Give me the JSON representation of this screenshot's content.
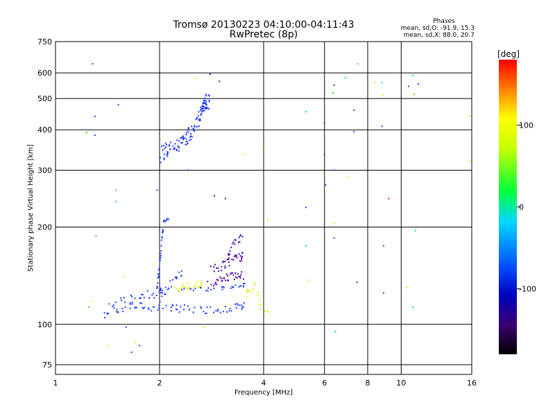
{
  "chart_data": {
    "type": "scatter",
    "title": "Tromsø 20130223 04:10:00-04:11:43",
    "subtitle": "RwPretec (8p)",
    "xlabel": "Frequency [MHz]",
    "ylabel": "Stationary phase Virtual Height [km]",
    "x_scale": "log",
    "y_scale": "log",
    "xlim": [
      1,
      16
    ],
    "ylim": [
      70,
      750
    ],
    "x_ticks": [
      1,
      2,
      4,
      6,
      8,
      10,
      16
    ],
    "y_ticks": [
      75,
      100,
      200,
      300,
      400,
      500,
      600,
      750
    ],
    "grid": true,
    "stats": {
      "heading": "Phases",
      "line_o": "mean, sd,O: -91.9, 15.3",
      "line_x": "mean, sd,X:  88.0, 20.7"
    },
    "colorbar": {
      "label": "[deg]",
      "ticks": [
        -100,
        0,
        100
      ],
      "range": [
        -180,
        180
      ],
      "colors": [
        "#000000",
        "#5a007a",
        "#0000ff",
        "#00e0ff",
        "#00ff00",
        "#ffff00",
        "#ff0000"
      ]
    },
    "phase_colors": {
      "blue": "#1e3cff",
      "violet": "#4b00a8",
      "yellow": "#e8e800",
      "cyan": "#00d0e8",
      "green": "#20d820",
      "orange": "#ff9000",
      "red": "#e82000"
    },
    "traces": [
      {
        "kind": "blue",
        "f": [
          1.38,
          1.45,
          1.55,
          1.65,
          1.75,
          1.85,
          1.95,
          2.05,
          2.2,
          2.35,
          2.5,
          2.7,
          2.9,
          3.1,
          3.3,
          3.45
        ],
        "h": [
          106,
          110,
          112,
          114,
          114,
          113,
          112,
          113,
          112,
          112,
          111,
          111,
          111,
          112,
          113,
          114
        ],
        "spread": 3,
        "n": 5
      },
      {
        "kind": "blue",
        "f": [
          1.42,
          1.5,
          1.6,
          1.7,
          1.8,
          1.9,
          2.0
        ],
        "h": [
          112,
          116,
          118,
          120,
          122,
          124,
          126
        ],
        "spread": 4,
        "n": 4
      },
      {
        "kind": "blue",
        "f": [
          1.96,
          1.98,
          2.0,
          2.02,
          2.04,
          2.06
        ],
        "h": [
          125,
          140,
          155,
          170,
          190,
          210
        ],
        "spread": 5,
        "n": 6
      },
      {
        "kind": "blue",
        "f": [
          2.0,
          2.05,
          2.12,
          2.2,
          2.28
        ],
        "h": [
          120,
          125,
          130,
          138,
          145
        ],
        "spread": 4,
        "n": 4
      },
      {
        "kind": "blue",
        "f": [
          2.0,
          2.1,
          2.2,
          2.3,
          2.4,
          2.5,
          2.6,
          2.7
        ],
        "h": [
          335,
          345,
          350,
          365,
          380,
          400,
          440,
          480
        ],
        "spread": 20,
        "n": 14
      },
      {
        "kind": "blue",
        "f": [
          2.6,
          2.64,
          2.68,
          2.72
        ],
        "h": [
          420,
          450,
          480,
          500
        ],
        "spread": 15,
        "n": 6
      },
      {
        "kind": "yellow",
        "f": [
          2.2,
          2.3,
          2.4,
          2.5,
          2.6
        ],
        "h": [
          128,
          130,
          131,
          132,
          133
        ],
        "spread": 3,
        "n": 5
      },
      {
        "kind": "blue",
        "f": [
          2.3,
          2.5,
          2.7,
          2.9,
          3.1,
          3.3,
          3.45
        ],
        "h": [
          127,
          128,
          128,
          129,
          130,
          131,
          132
        ],
        "spread": 2,
        "n": 4
      },
      {
        "kind": "violet",
        "f": [
          2.75,
          2.9,
          3.0,
          3.1,
          3.2,
          3.3,
          3.4
        ],
        "h": [
          133,
          136,
          138,
          139,
          140,
          141,
          142
        ],
        "spread": 4,
        "n": 5
      },
      {
        "kind": "violet",
        "f": [
          2.8,
          2.95,
          3.05,
          3.15,
          3.25,
          3.35,
          3.45
        ],
        "h": [
          150,
          148,
          152,
          156,
          158,
          160,
          162
        ],
        "spread": 5,
        "n": 5
      },
      {
        "kind": "violet",
        "f": [
          3.1,
          3.2,
          3.3,
          3.4
        ],
        "h": [
          165,
          170,
          178,
          185
        ],
        "spread": 5,
        "n": 4
      },
      {
        "kind": "yellow",
        "f": [
          3.5,
          3.6,
          3.7,
          3.8,
          3.9,
          4.0
        ],
        "h": [
          120,
          125,
          130,
          135,
          115,
          112
        ],
        "spread": 4,
        "n": 3
      }
    ],
    "scatter_points": [
      {
        "f": 1.28,
        "h": 640,
        "kind": "blue"
      },
      {
        "f": 1.3,
        "h": 440,
        "kind": "blue"
      },
      {
        "f": 1.3,
        "h": 385,
        "kind": "blue"
      },
      {
        "f": 1.23,
        "h": 392,
        "kind": "green"
      },
      {
        "f": 1.52,
        "h": 478,
        "kind": "blue"
      },
      {
        "f": 1.5,
        "h": 260,
        "kind": "green"
      },
      {
        "f": 1.5,
        "h": 240,
        "kind": "green"
      },
      {
        "f": 1.31,
        "h": 188,
        "kind": "green"
      },
      {
        "f": 1.97,
        "h": 260,
        "kind": "blue"
      },
      {
        "f": 2.42,
        "h": 300,
        "kind": "blue"
      },
      {
        "f": 2.55,
        "h": 580,
        "kind": "yellow"
      },
      {
        "f": 2.8,
        "h": 595,
        "kind": "violet"
      },
      {
        "f": 2.98,
        "h": 565,
        "kind": "violet"
      },
      {
        "f": 3.1,
        "h": 245,
        "kind": "violet"
      },
      {
        "f": 2.88,
        "h": 250,
        "kind": "violet"
      },
      {
        "f": 3.5,
        "h": 335,
        "kind": "yellow"
      },
      {
        "f": 4.12,
        "h": 210,
        "kind": "yellow"
      },
      {
        "f": 4.0,
        "h": 355,
        "kind": "orange"
      },
      {
        "f": 5.3,
        "h": 455,
        "kind": "cyan"
      },
      {
        "f": 5.3,
        "h": 230,
        "kind": "blue"
      },
      {
        "f": 5.3,
        "h": 175,
        "kind": "cyan"
      },
      {
        "f": 5.4,
        "h": 137,
        "kind": "yellow"
      },
      {
        "f": 6.0,
        "h": 420,
        "kind": "blue"
      },
      {
        "f": 6.0,
        "h": 335,
        "kind": "blue"
      },
      {
        "f": 6.05,
        "h": 270,
        "kind": "blue"
      },
      {
        "f": 6.4,
        "h": 550,
        "kind": "blue"
      },
      {
        "f": 6.35,
        "h": 520,
        "kind": "green"
      },
      {
        "f": 6.4,
        "h": 300,
        "kind": "blue"
      },
      {
        "f": 6.4,
        "h": 205,
        "kind": "yellow"
      },
      {
        "f": 6.4,
        "h": 185,
        "kind": "blue"
      },
      {
        "f": 6.45,
        "h": 95,
        "kind": "cyan"
      },
      {
        "f": 6.9,
        "h": 580,
        "kind": "cyan"
      },
      {
        "f": 7.0,
        "h": 285,
        "kind": "yellow"
      },
      {
        "f": 7.3,
        "h": 460,
        "kind": "blue"
      },
      {
        "f": 7.3,
        "h": 395,
        "kind": "blue"
      },
      {
        "f": 7.5,
        "h": 640,
        "kind": "orange"
      },
      {
        "f": 7.45,
        "h": 135,
        "kind": "blue"
      },
      {
        "f": 8.4,
        "h": 560,
        "kind": "yellow"
      },
      {
        "f": 8.8,
        "h": 560,
        "kind": "cyan"
      },
      {
        "f": 8.85,
        "h": 512,
        "kind": "yellow"
      },
      {
        "f": 8.8,
        "h": 410,
        "kind": "blue"
      },
      {
        "f": 8.9,
        "h": 175,
        "kind": "blue"
      },
      {
        "f": 8.9,
        "h": 125,
        "kind": "blue"
      },
      {
        "f": 9.2,
        "h": 245,
        "kind": "red"
      },
      {
        "f": 10.5,
        "h": 545,
        "kind": "blue"
      },
      {
        "f": 10.8,
        "h": 590,
        "kind": "cyan"
      },
      {
        "f": 11.2,
        "h": 555,
        "kind": "blue"
      },
      {
        "f": 10.9,
        "h": 515,
        "kind": "orange"
      },
      {
        "f": 11.0,
        "h": 195,
        "kind": "cyan"
      },
      {
        "f": 10.8,
        "h": 113,
        "kind": "cyan"
      },
      {
        "f": 10.4,
        "h": 130,
        "kind": "yellow"
      },
      {
        "f": 15.8,
        "h": 440,
        "kind": "yellow"
      },
      {
        "f": 15.8,
        "h": 320,
        "kind": "yellow"
      },
      {
        "f": 1.28,
        "h": 118,
        "kind": "yellow"
      },
      {
        "f": 1.25,
        "h": 113,
        "kind": "green"
      },
      {
        "f": 1.42,
        "h": 86,
        "kind": "yellow"
      },
      {
        "f": 1.66,
        "h": 82,
        "kind": "blue"
      },
      {
        "f": 1.7,
        "h": 88,
        "kind": "yellow"
      },
      {
        "f": 1.75,
        "h": 86,
        "kind": "blue"
      },
      {
        "f": 1.6,
        "h": 98,
        "kind": "blue"
      },
      {
        "f": 2.7,
        "h": 98,
        "kind": "yellow"
      },
      {
        "f": 1.58,
        "h": 140,
        "kind": "yellow"
      }
    ]
  }
}
